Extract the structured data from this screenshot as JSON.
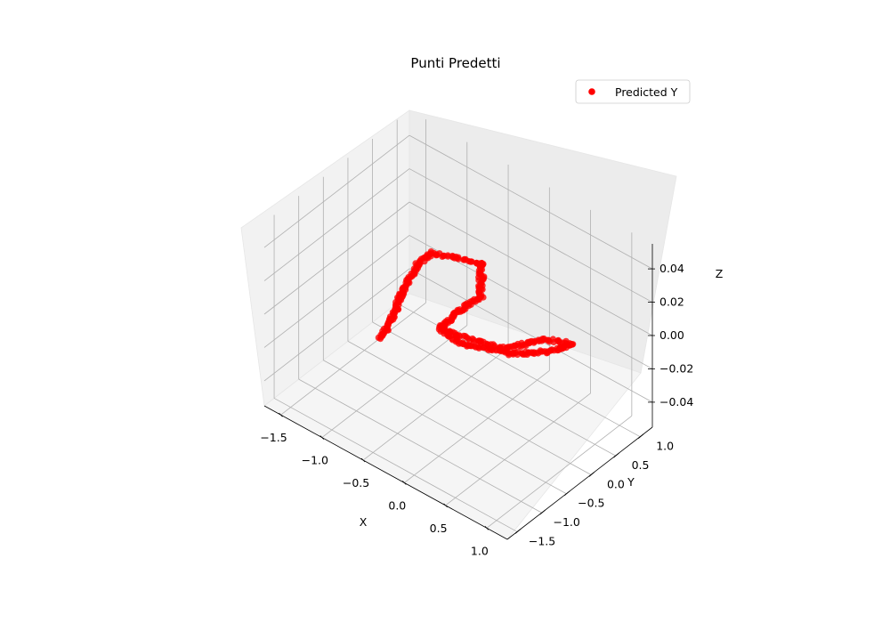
{
  "chart_data": {
    "type": "scatter",
    "title": "Punti Predetti",
    "xlabel": "X",
    "ylabel": "Y",
    "zlabel": "Z",
    "xlim": [
      -1.7,
      1.25
    ],
    "ylim": [
      -1.7,
      1.25
    ],
    "zlim": [
      -0.055,
      0.055
    ],
    "grid": true,
    "legend": {
      "placement": "top-right",
      "entries": [
        "Predicted Y"
      ]
    },
    "x_ticks": [
      "−1.5",
      "−1.0",
      "−0.5",
      "0.0",
      "0.5",
      "1.0"
    ],
    "y_ticks": [
      "−1.5",
      "−1.0",
      "−0.5",
      "0.0",
      "0.5",
      "1.0"
    ],
    "z_ticks": [
      "−0.04",
      "−0.02",
      "0.00",
      "0.02",
      "0.04"
    ],
    "series": [
      {
        "name": "Predicted Y",
        "color": "#ff0000",
        "z": 0.0,
        "path_x": [
          -0.65,
          -0.75,
          -0.87,
          -0.97,
          -1.07,
          -1.07,
          -0.85,
          -0.62,
          -0.62,
          -0.32,
          -0.35,
          -0.3,
          -0.05,
          0.2,
          0.4,
          0.55,
          0.72,
          0.75,
          0.52,
          0.4,
          0.3,
          0.05,
          -0.15,
          -0.35
        ],
        "path_y": [
          -1.1,
          -0.7,
          -0.35,
          0.0,
          0.35,
          0.66,
          0.79,
          0.9,
          0.9,
          0.4,
          -0.02,
          -0.45,
          -0.5,
          -0.35,
          -0.23,
          -0.05,
          0.25,
          0.45,
          0.28,
          -0.02,
          -0.22,
          -0.32,
          -0.4,
          -0.4
        ]
      }
    ]
  }
}
